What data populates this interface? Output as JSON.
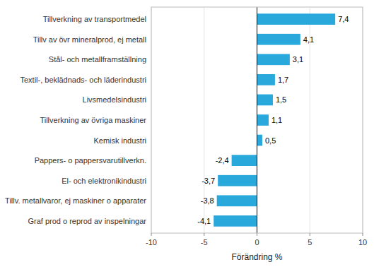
{
  "chart_data": {
    "type": "bar",
    "orientation": "horizontal",
    "categories": [
      "Graf prod o reprod av inspelningar",
      "Tillv. metallvaror, ej maskiner o apparater",
      "El- och elektronikindustri",
      "Pappers- o pappersvarutillverkn.",
      "Kemisk industri",
      "Tillverkning av övriga maskiner",
      "Livsmedelsindustri",
      "Textil-, beklädnads- och läderindustri",
      "Stål- och metallframställning",
      "Tillv av övr mineralprod, ej metall",
      "Tillverkning av transportmedel"
    ],
    "values": [
      -4.1,
      -3.8,
      -3.7,
      -2.4,
      0.5,
      1.1,
      1.5,
      1.7,
      3.1,
      4.1,
      7.4
    ],
    "value_labels": [
      "-4,1",
      "-3,8",
      "-3,7",
      "-2,4",
      "0,5",
      "1,1",
      "1,5",
      "1,7",
      "3,1",
      "4,1",
      "7,4"
    ],
    "data_labels": true,
    "color": "#29a8dc",
    "xlabel": "Förändring %",
    "xlim": [
      -10,
      10
    ],
    "xticks": [
      -10,
      -5,
      0,
      5,
      10
    ],
    "grid": true
  }
}
